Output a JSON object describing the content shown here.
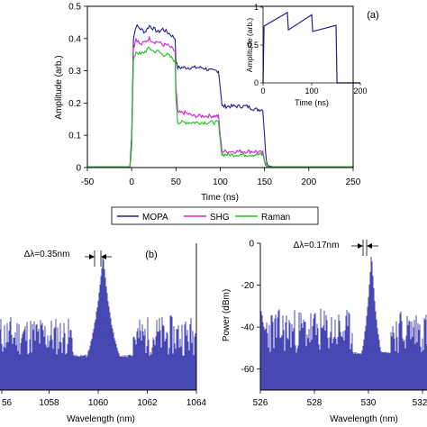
{
  "colors": {
    "mopa": "#1f1f8f",
    "shg": "#d020d0",
    "raman": "#20c020",
    "spectrum": "#1a1aa0",
    "axis": "#000000"
  },
  "chart_data": [
    {
      "id": "a",
      "type": "line",
      "panel_label": "(a)",
      "xlabel": "Time (ns)",
      "ylabel": "Amplitude (arb.)",
      "xlim": [
        -50,
        250
      ],
      "ylim": [
        0,
        0.5
      ],
      "xticks": [
        "-50",
        "0",
        "50",
        "100",
        "150",
        "200",
        "250"
      ],
      "yticks": [
        "0",
        "0.1",
        "0.2",
        "0.3",
        "0.4",
        "0.5"
      ],
      "legend": {
        "placement": "bottom",
        "entries": [
          "MOPA",
          "SHG",
          "Raman"
        ]
      },
      "series": [
        {
          "name": "MOPA",
          "x": [
            -50,
            -2,
            0,
            2,
            5,
            10,
            15,
            20,
            25,
            30,
            35,
            40,
            45,
            49,
            50,
            52,
            60,
            70,
            80,
            90,
            98,
            100,
            102,
            110,
            120,
            130,
            140,
            148,
            150,
            152,
            155,
            160,
            250
          ],
          "y": [
            0.002,
            0.002,
            0.1,
            0.4,
            0.44,
            0.43,
            0.42,
            0.44,
            0.43,
            0.42,
            0.43,
            0.42,
            0.41,
            0.4,
            0.33,
            0.31,
            0.31,
            0.31,
            0.31,
            0.3,
            0.3,
            0.25,
            0.19,
            0.19,
            0.19,
            0.19,
            0.18,
            0.18,
            0.1,
            0.02,
            0.005,
            0.002,
            0.002
          ]
        },
        {
          "name": "SHG",
          "x": [
            -50,
            -2,
            0,
            2,
            5,
            10,
            15,
            20,
            25,
            30,
            35,
            40,
            45,
            49,
            50,
            52,
            60,
            70,
            80,
            90,
            98,
            100,
            102,
            110,
            120,
            130,
            140,
            148,
            150,
            152,
            155,
            160,
            250
          ],
          "y": [
            0.002,
            0.002,
            0.08,
            0.37,
            0.4,
            0.38,
            0.39,
            0.4,
            0.39,
            0.39,
            0.38,
            0.38,
            0.37,
            0.36,
            0.25,
            0.17,
            0.17,
            0.16,
            0.16,
            0.16,
            0.16,
            0.1,
            0.05,
            0.05,
            0.05,
            0.05,
            0.05,
            0.045,
            0.02,
            0.005,
            0.002,
            0.002,
            0.002
          ]
        },
        {
          "name": "Raman",
          "x": [
            -50,
            -2,
            0,
            2,
            5,
            10,
            15,
            20,
            25,
            30,
            35,
            40,
            45,
            49,
            50,
            52,
            60,
            70,
            80,
            90,
            98,
            100,
            102,
            110,
            120,
            130,
            140,
            148,
            150,
            152,
            155,
            160,
            250
          ],
          "y": [
            0.002,
            0.002,
            0.07,
            0.33,
            0.36,
            0.35,
            0.36,
            0.37,
            0.36,
            0.36,
            0.35,
            0.35,
            0.34,
            0.33,
            0.22,
            0.14,
            0.14,
            0.14,
            0.14,
            0.14,
            0.14,
            0.08,
            0.04,
            0.04,
            0.04,
            0.04,
            0.04,
            0.04,
            0.02,
            0.005,
            0.002,
            0.002,
            0.002
          ]
        }
      ],
      "inset": {
        "type": "line",
        "xlabel": "Time (ns)",
        "ylabel": "Amplitude (arb.)",
        "xlim": [
          0,
          200
        ],
        "ylim": [
          0,
          1
        ],
        "xticks": [
          "0",
          "100",
          "200"
        ],
        "yticks": [
          "0",
          "0.5",
          "1"
        ],
        "series": [
          {
            "x": [
              0,
              2,
              50,
              52,
              100,
              102,
              150,
              152,
              200
            ],
            "y": [
              0,
              0.75,
              0.93,
              0.7,
              0.9,
              0.68,
              0.76,
              0,
              0
            ]
          }
        ]
      }
    },
    {
      "id": "b-left",
      "type": "line",
      "panel_label": "(b)",
      "annotation": "Δλ=0.35nm",
      "xlabel": "Wavelength (nm)",
      "xticks": [
        "56",
        "1058",
        "1060",
        "1062",
        "1064"
      ],
      "xlim": [
        1056,
        1064
      ],
      "peak_x": 1060.2,
      "linewidth_nm": 0.35
    },
    {
      "id": "b-right",
      "type": "line",
      "annotation": "Δλ=0.17nm",
      "xlabel": "Wavelength (nm)",
      "ylabel": "Power (dBm)",
      "xlim": [
        526,
        532
      ],
      "ylim": [
        -70,
        0
      ],
      "xticks": [
        "526",
        "528",
        "530",
        "532"
      ],
      "yticks": [
        "0",
        "-20",
        "-40",
        "-60"
      ],
      "peak_x": 530.1,
      "linewidth_nm": 0.17
    }
  ]
}
